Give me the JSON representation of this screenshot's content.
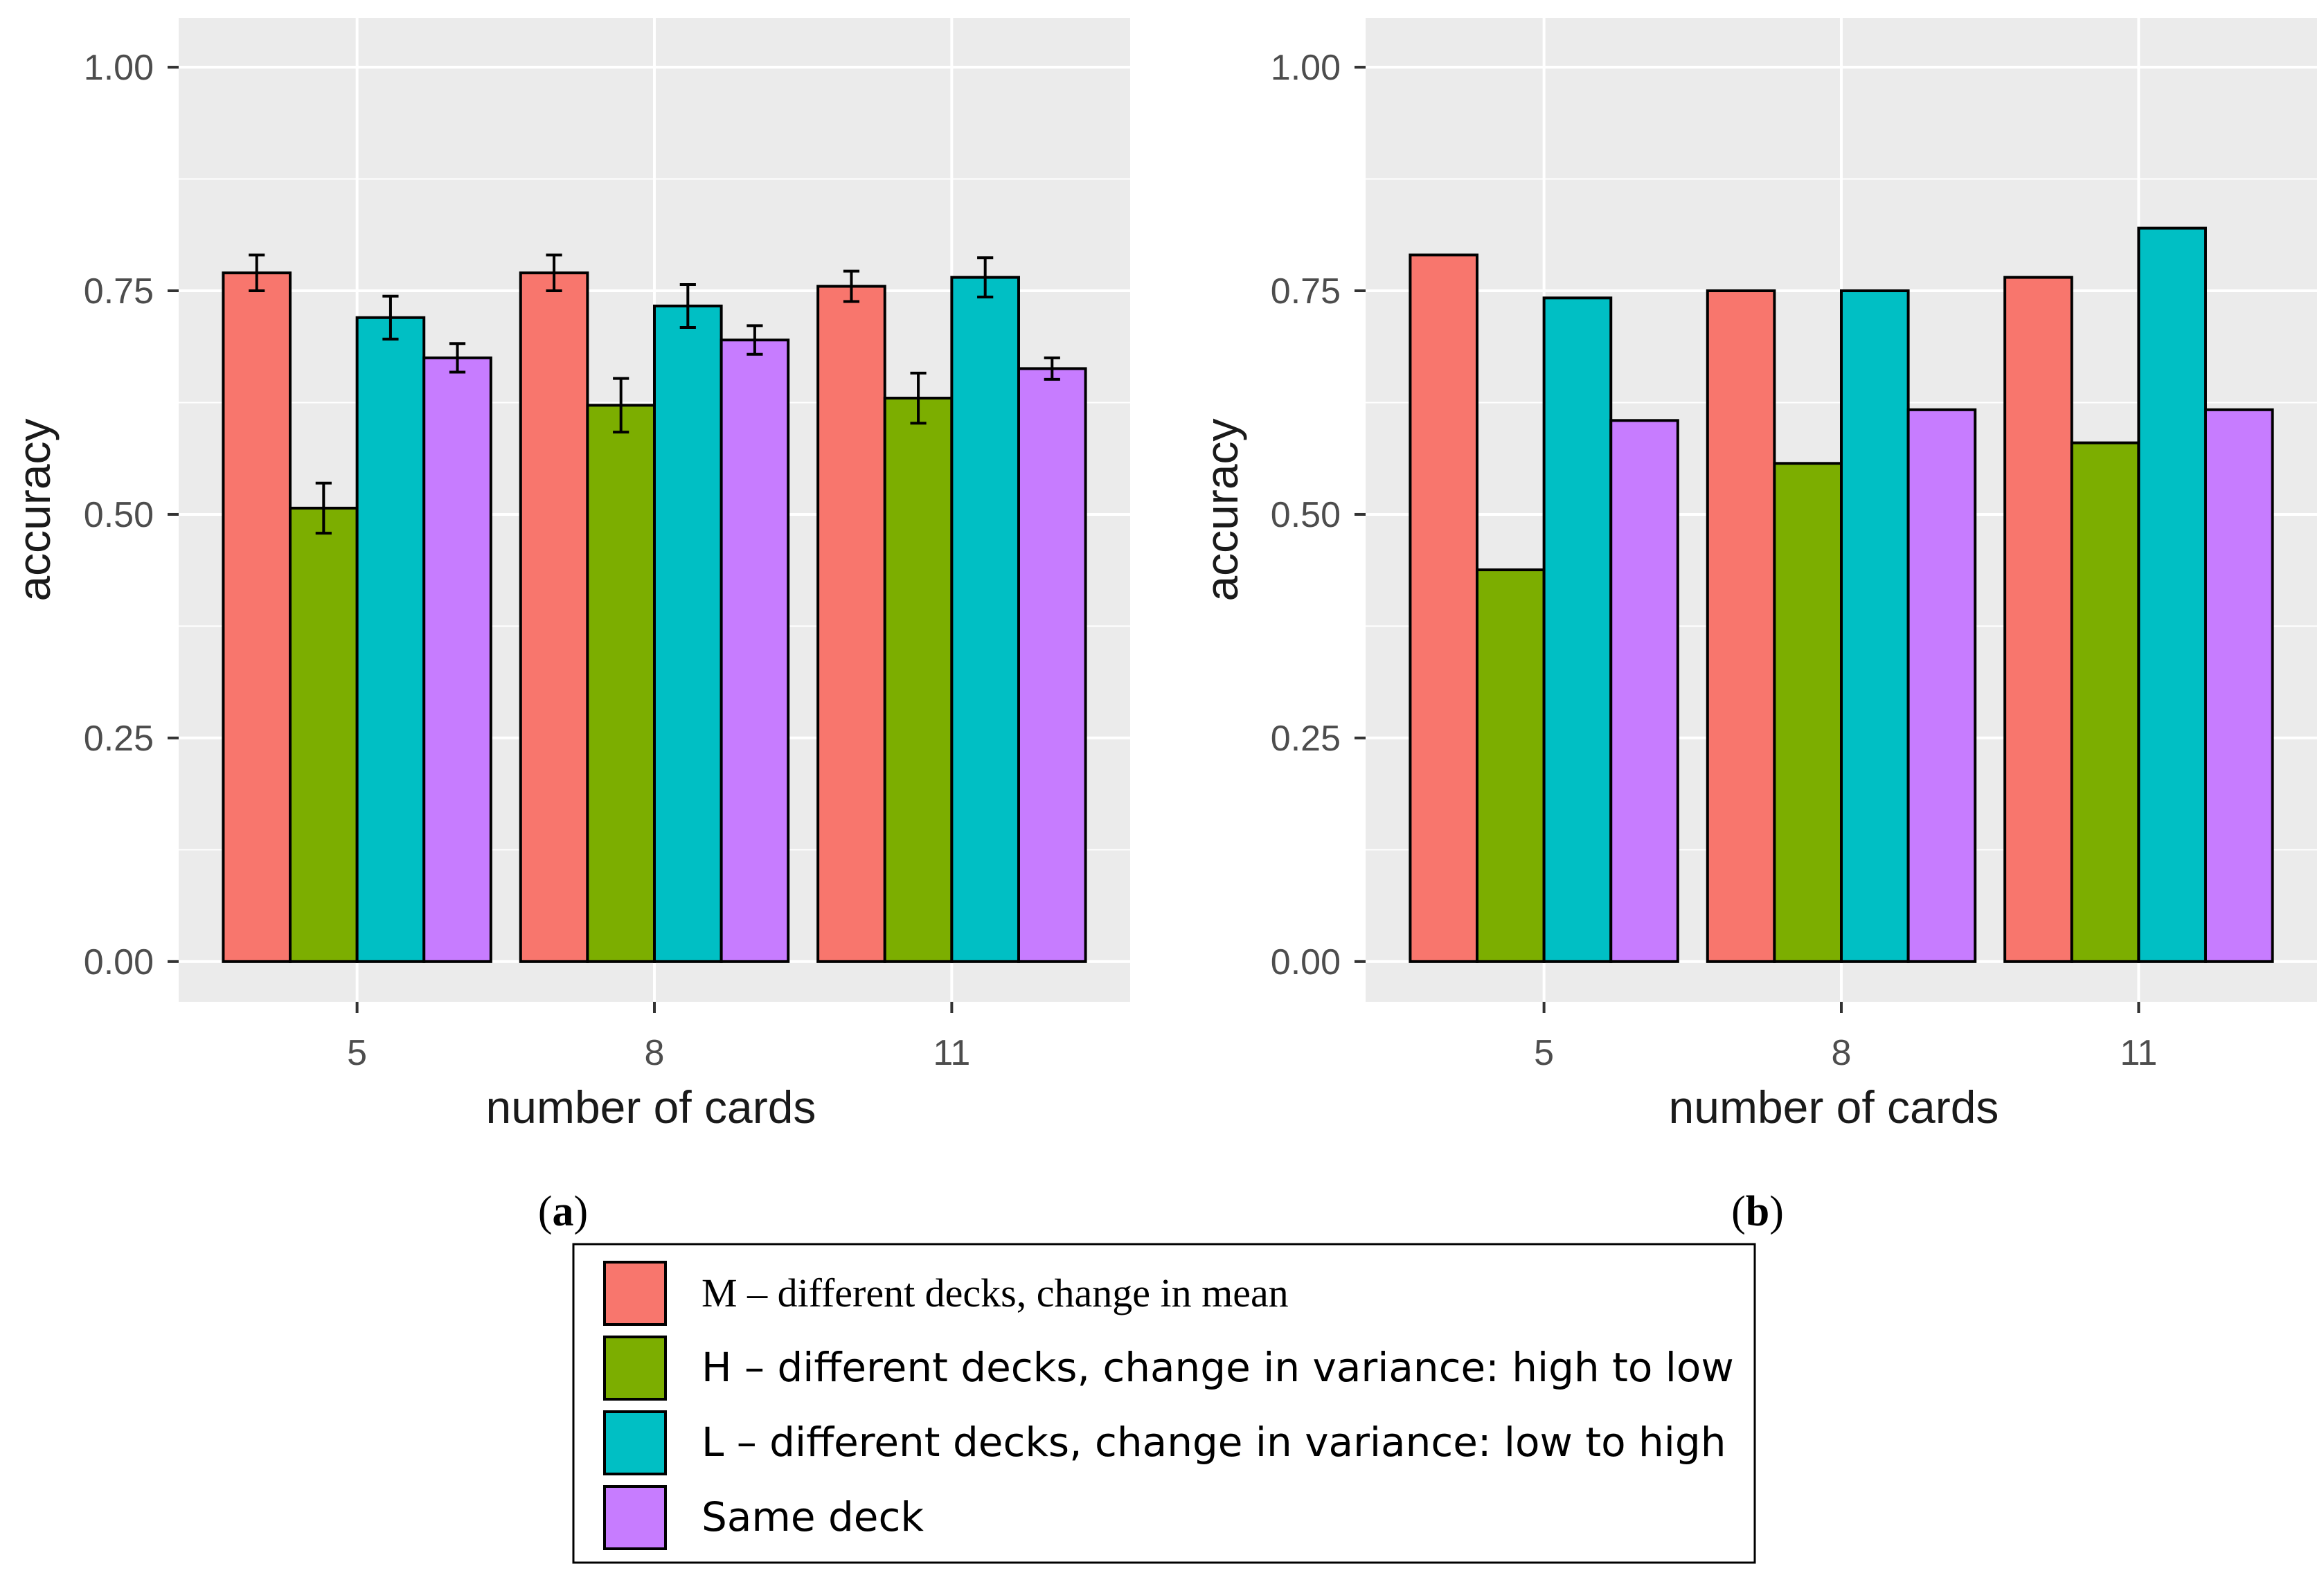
{
  "chart_data": [
    {
      "type": "bar",
      "panel_label": "(a)",
      "panel_letter": "a",
      "xlabel": "number of cards",
      "ylabel": "accuracy",
      "categories": [
        "5",
        "8",
        "11"
      ],
      "ylim": [
        -0.045,
        1.055
      ],
      "yticks": [
        0.0,
        0.25,
        0.5,
        0.75,
        1.0
      ],
      "ytick_labels": [
        "0.00",
        "0.25",
        "0.50",
        "0.75",
        "1.00"
      ],
      "grid": true,
      "error_bars": true,
      "series": [
        {
          "name": "M",
          "values": [
            0.77,
            0.77,
            0.755
          ],
          "errors": [
            0.02,
            0.02,
            0.017
          ]
        },
        {
          "name": "H",
          "values": [
            0.507,
            0.622,
            0.63
          ],
          "errors": [
            0.028,
            0.03,
            0.028
          ]
        },
        {
          "name": "L",
          "values": [
            0.72,
            0.733,
            0.765
          ],
          "errors": [
            0.024,
            0.024,
            0.022
          ]
        },
        {
          "name": "Same deck",
          "values": [
            0.675,
            0.695,
            0.663
          ],
          "errors": [
            0.016,
            0.016,
            0.012
          ]
        }
      ]
    },
    {
      "type": "bar",
      "panel_label": "(b)",
      "panel_letter": "b",
      "xlabel": "number of cards",
      "ylabel": "accuracy",
      "categories": [
        "5",
        "8",
        "11"
      ],
      "ylim": [
        -0.045,
        1.055
      ],
      "yticks": [
        0.0,
        0.25,
        0.5,
        0.75,
        1.0
      ],
      "ytick_labels": [
        "0.00",
        "0.25",
        "0.50",
        "0.75",
        "1.00"
      ],
      "grid": true,
      "error_bars": false,
      "series": [
        {
          "name": "M",
          "values": [
            0.79,
            0.75,
            0.765
          ]
        },
        {
          "name": "H",
          "values": [
            0.438,
            0.557,
            0.58
          ]
        },
        {
          "name": "L",
          "values": [
            0.742,
            0.75,
            0.82
          ]
        },
        {
          "name": "Same deck",
          "values": [
            0.605,
            0.617,
            0.617
          ]
        }
      ]
    }
  ],
  "legend": {
    "placement": "bottom-center",
    "entries": [
      {
        "label": "M – different decks, change in mean",
        "color": "#F8766D",
        "serif": true
      },
      {
        "label": "H – different decks, change in variance: high to low",
        "color": "#7CAE00",
        "serif": false
      },
      {
        "label": "L – different decks, change in variance: low to high",
        "color": "#00BFC4",
        "serif": false
      },
      {
        "label": "Same deck",
        "color": "#C77CFF",
        "serif": false
      }
    ]
  },
  "colors": [
    "#F8766D",
    "#7CAE00",
    "#00BFC4",
    "#C77CFF"
  ],
  "panel_background": "#EBEBEB",
  "grid_color": "#FFFFFF"
}
